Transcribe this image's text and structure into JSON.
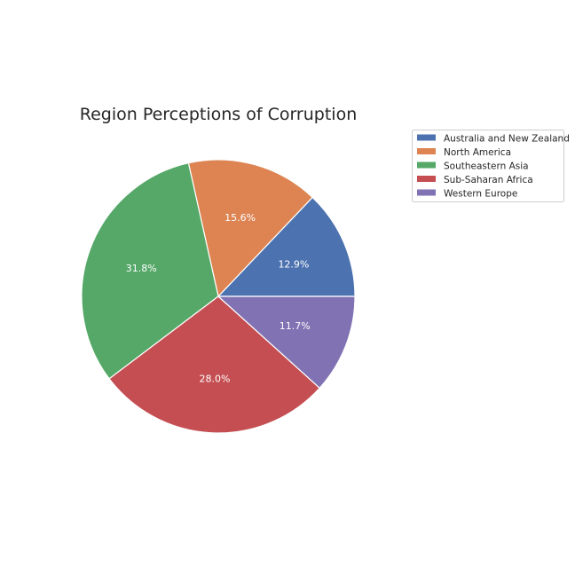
{
  "chart_data": {
    "type": "pie",
    "title": "Region Perceptions of Corruption",
    "categories": [
      "Australia and New Zealand",
      "North America",
      "Southeastern Asia",
      "Sub-Saharan Africa",
      "Western Europe"
    ],
    "values": [
      12.9,
      15.6,
      31.8,
      28.0,
      11.7
    ],
    "value_labels": [
      "12.9%",
      "15.6%",
      "31.8%",
      "28.0%",
      "11.7%"
    ],
    "colors": [
      "#4c72b0",
      "#dd8452",
      "#55a868",
      "#c44e52",
      "#8172b3"
    ],
    "start_angle_deg": 0,
    "direction": "counterclockwise",
    "legend_position": "upper-right outside"
  }
}
